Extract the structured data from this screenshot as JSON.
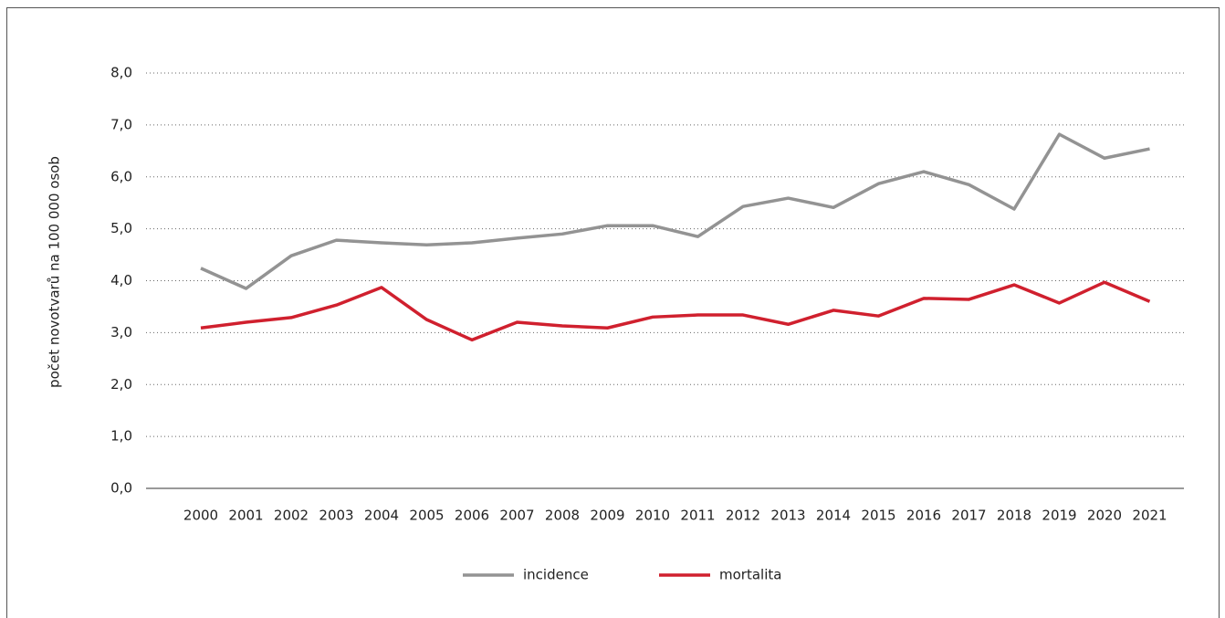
{
  "chart_data": {
    "type": "line",
    "y_label": "počet novotvarů na 100 000 osob",
    "categories": [
      "2000",
      "2001",
      "2002",
      "2003",
      "2004",
      "2005",
      "2006",
      "2007",
      "2008",
      "2009",
      "2010",
      "2011",
      "2012",
      "2013",
      "2014",
      "2015",
      "2016",
      "2017",
      "2018",
      "2019",
      "2020",
      "2021"
    ],
    "series": [
      {
        "name": "incidence",
        "color": "#939393",
        "values": [
          4.24,
          3.85,
          4.48,
          4.78,
          4.73,
          4.69,
          4.73,
          4.82,
          4.9,
          5.06,
          5.06,
          4.85,
          5.43,
          5.59,
          5.41,
          5.87,
          6.1,
          5.85,
          5.38,
          6.82,
          6.36,
          6.54
        ]
      },
      {
        "name": "mortalita",
        "color": "#d0202e",
        "values": [
          3.09,
          3.2,
          3.29,
          3.53,
          3.87,
          3.25,
          2.86,
          3.2,
          3.13,
          3.09,
          3.3,
          3.34,
          3.34,
          3.16,
          3.43,
          3.32,
          3.66,
          3.64,
          3.92,
          3.57,
          3.97,
          3.6
        ]
      }
    ],
    "ylim": [
      0,
      8
    ],
    "yticks": [
      {
        "value": 0,
        "label": "0,0"
      },
      {
        "value": 1,
        "label": "1,0"
      },
      {
        "value": 2,
        "label": "2,0"
      },
      {
        "value": 3,
        "label": "3,0"
      },
      {
        "value": 4,
        "label": "4,0"
      },
      {
        "value": 5,
        "label": "5,0"
      },
      {
        "value": 6,
        "label": "6,0"
      },
      {
        "value": 7,
        "label": "7,0"
      },
      {
        "value": 8,
        "label": "8,0"
      }
    ],
    "grid": true
  }
}
